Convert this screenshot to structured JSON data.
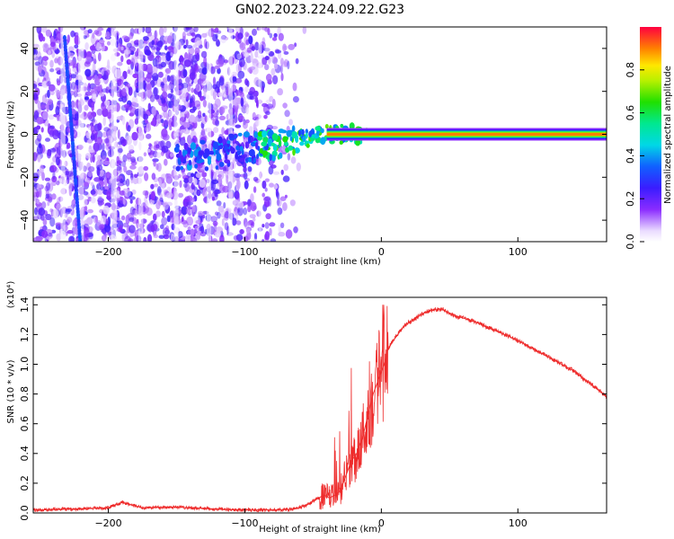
{
  "figure_title": "GN02.2023.224.09.22.G23",
  "chart_data": [
    {
      "type": "heatmap",
      "title": "",
      "xlabel": "Height of straight line (km)",
      "ylabel": "Frequency (Hz)",
      "xlim": [
        -255,
        165
      ],
      "ylim": [
        -50,
        50
      ],
      "xticks": [
        -200,
        -100,
        0,
        100
      ],
      "yticks": [
        -40,
        -20,
        0,
        20,
        40
      ],
      "colorbar": {
        "label": "Normalized spectral amplitude",
        "range": [
          0,
          1
        ],
        "ticks": [
          "0.0",
          "0.2",
          "0.4",
          "0.6",
          "0.8"
        ],
        "colormap": "white-purple-blue-cyan-green-yellow-red"
      },
      "features": {
        "noise_region_km": [
          -255,
          -65
        ],
        "signal_line_frequency_hz": 0,
        "signal_line_km": [
          -40,
          165
        ],
        "signal_line_amplitude": 0.9,
        "transition_region_km": [
          -150,
          -10
        ]
      }
    },
    {
      "type": "line",
      "title": "",
      "xlabel": "Height of straight line (km)",
      "ylabel": "SNR (10 * v/v)",
      "y_multiplier": "(x10⁴)",
      "xlim": [
        -255,
        165
      ],
      "ylim": [
        0,
        1.45
      ],
      "xticks": [
        -200,
        -100,
        0,
        100
      ],
      "yticks": [
        "0.0",
        "0.2",
        "0.4",
        "0.6",
        "0.8",
        "1.0",
        "1.2",
        "1.4"
      ],
      "series": [
        {
          "color": "#ee2b2b",
          "x": [
            -255,
            -230,
            -200,
            -190,
            -175,
            -150,
            -120,
            -100,
            -80,
            -65,
            -55,
            -48,
            -42,
            -38,
            -34,
            -30,
            -26,
            -22,
            -18,
            -14,
            -10,
            -6,
            -2,
            0,
            2,
            4,
            6,
            8,
            12,
            16,
            20,
            25,
            30,
            35,
            40,
            45,
            50,
            60,
            70,
            80,
            90,
            100,
            110,
            120,
            130,
            140,
            150,
            160,
            165
          ],
          "y": [
            0.02,
            0.025,
            0.035,
            0.07,
            0.035,
            0.04,
            0.025,
            0.02,
            0.02,
            0.025,
            0.05,
            0.09,
            0.12,
            0.1,
            0.12,
            0.15,
            0.25,
            0.35,
            0.4,
            0.5,
            0.65,
            0.8,
            0.9,
            0.95,
            1.0,
            1.08,
            1.12,
            1.15,
            1.2,
            1.25,
            1.28,
            1.31,
            1.34,
            1.36,
            1.37,
            1.37,
            1.34,
            1.31,
            1.28,
            1.24,
            1.2,
            1.16,
            1.11,
            1.06,
            1.01,
            0.96,
            0.89,
            0.82,
            0.78
          ]
        }
      ]
    }
  ]
}
